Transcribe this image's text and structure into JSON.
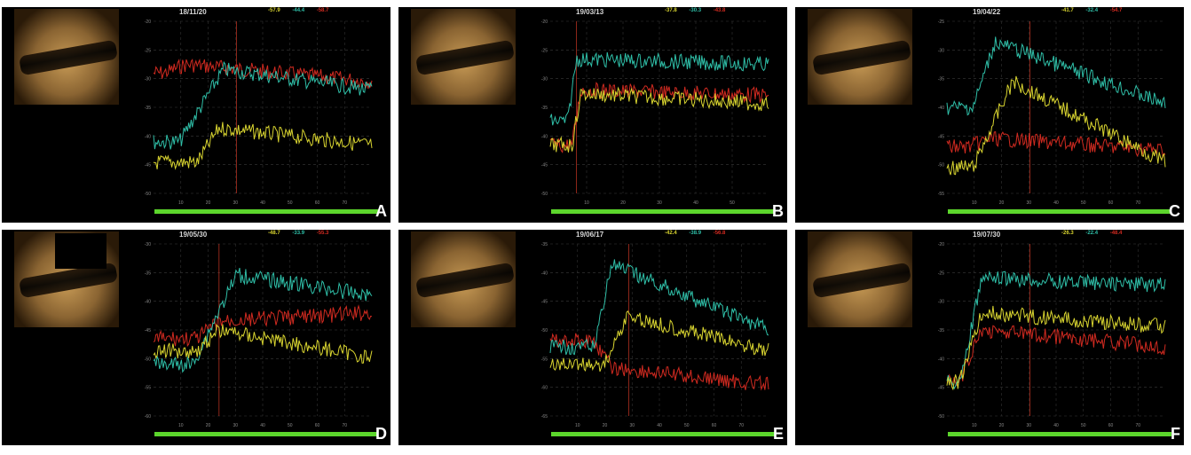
{
  "colors": {
    "teal": "#2fbfa8",
    "yellow": "#d8d430",
    "red": "#d02a20",
    "scrub": "#5cd62c",
    "ref_line": "#b03020"
  },
  "panels": [
    {
      "label": "A",
      "date": "18/11/20",
      "hdr": [
        "-57.9",
        "-44.4",
        "-58.7"
      ],
      "x_ticks": [
        "10",
        "20",
        "30",
        "40",
        "50",
        "60",
        "70"
      ],
      "y_ticks": [
        "-20",
        "-25",
        "-30",
        "-35",
        "-40",
        "-45",
        "-50"
      ]
    },
    {
      "label": "B",
      "date": "19/03/13",
      "hdr": [
        "-37.8",
        "-30.3",
        "-43.8"
      ],
      "x_ticks": [
        "10",
        "20",
        "30",
        "40",
        "50"
      ],
      "y_ticks": [
        "-20",
        "-25",
        "-30",
        "-35",
        "-40",
        "-45",
        "-50"
      ]
    },
    {
      "label": "C",
      "date": "19/04/22",
      "hdr": [
        "-41.7",
        "-32.4",
        "-54.7"
      ],
      "x_ticks": [
        "10",
        "20",
        "30",
        "40",
        "50",
        "60",
        "70"
      ],
      "y_ticks": [
        "-25",
        "-30",
        "-35",
        "-40",
        "-45",
        "-50",
        "-55"
      ]
    },
    {
      "label": "D",
      "date": "19/05/30",
      "hdr": [
        "-48.7",
        "-33.9",
        "-55.3"
      ],
      "x_ticks": [
        "10",
        "20",
        "30",
        "40",
        "50",
        "60",
        "70"
      ],
      "y_ticks": [
        "-30",
        "-35",
        "-40",
        "-45",
        "-50",
        "-55",
        "-60"
      ]
    },
    {
      "label": "E",
      "date": "19/06/17",
      "hdr": [
        "-42.4",
        "-38.9",
        "-56.8"
      ],
      "x_ticks": [
        "10",
        "20",
        "30",
        "40",
        "50",
        "60",
        "70"
      ],
      "y_ticks": [
        "-35",
        "-40",
        "-45",
        "-50",
        "-55",
        "-60",
        "-65"
      ]
    },
    {
      "label": "F",
      "date": "19/07/30",
      "hdr": [
        "-26.3",
        "-22.4",
        "-48.4"
      ],
      "x_ticks": [
        "10",
        "20",
        "30",
        "40",
        "50",
        "60",
        "70"
      ],
      "y_ticks": [
        "-20",
        "-25",
        "-30",
        "-35",
        "-40",
        "-45",
        "-50"
      ]
    }
  ]
}
